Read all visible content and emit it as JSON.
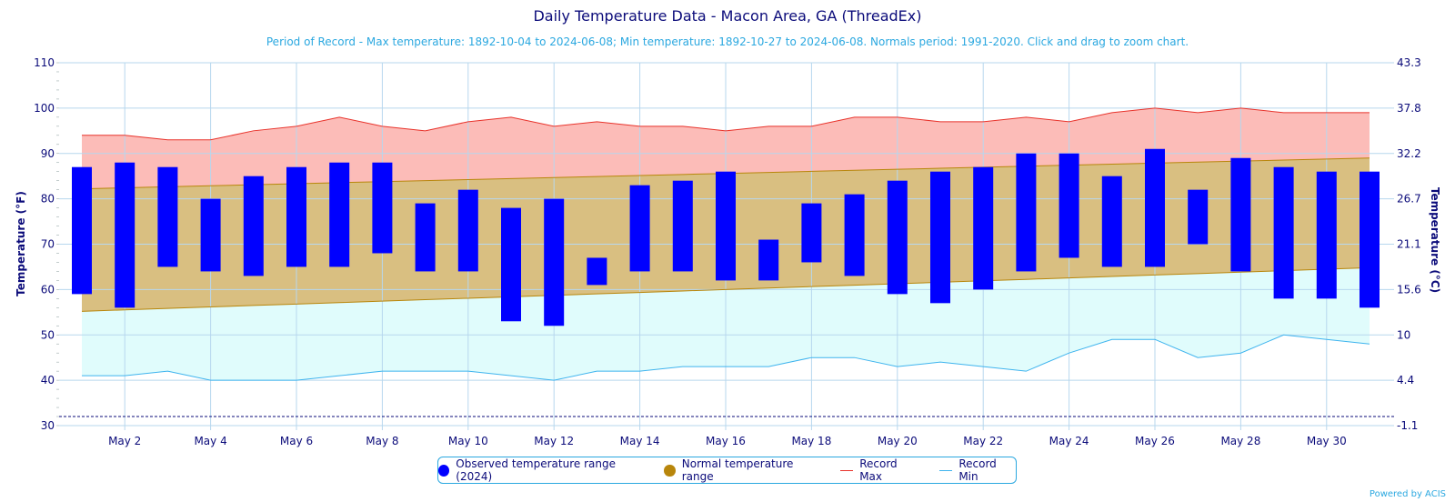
{
  "chart_data": {
    "type": "bar",
    "title": "Daily Temperature Data - Macon Area, GA (ThreadEx)",
    "subtitle": "Period of Record - Max temperature: 1892-10-04 to 2024-06-08; Min temperature: 1892-10-27 to 2024-06-08. Normals period: 1991-2020. Click and drag to zoom chart.",
    "ylabel": "Temperature (°F)",
    "y2label": "Temperature (°C)",
    "ylim": [
      30,
      110
    ],
    "yticks": [
      "30",
      "40",
      "50",
      "60",
      "70",
      "80",
      "90",
      "100",
      "110"
    ],
    "y2ticks": [
      "-1.1",
      "4.4",
      "10",
      "15.6",
      "21.1",
      "26.7",
      "32.2",
      "37.8",
      "43.3"
    ],
    "freezing_line": 32,
    "days": [
      1,
      2,
      3,
      4,
      5,
      6,
      7,
      8,
      9,
      10,
      11,
      12,
      13,
      14,
      15,
      16,
      17,
      18,
      19,
      20,
      21,
      22,
      23,
      24,
      25,
      26,
      27,
      28,
      29,
      30,
      31
    ],
    "xtick_labels": [
      "May 2",
      "May 4",
      "May 6",
      "May 8",
      "May 10",
      "May 12",
      "May 14",
      "May 16",
      "May 18",
      "May 20",
      "May 22",
      "May 24",
      "May 26",
      "May 28",
      "May 30"
    ],
    "xtick_days": [
      2,
      4,
      6,
      8,
      10,
      12,
      14,
      16,
      18,
      20,
      22,
      24,
      26,
      28,
      30
    ],
    "observed_min": [
      59,
      56,
      65,
      64,
      63,
      65,
      65,
      68,
      64,
      64,
      53,
      52,
      61,
      64,
      64,
      62,
      62,
      66,
      63,
      59,
      57,
      60,
      64,
      67,
      65,
      65,
      70,
      64,
      58,
      58,
      56
    ],
    "observed_max": [
      87,
      88,
      87,
      80,
      85,
      87,
      88,
      88,
      79,
      82,
      78,
      80,
      67,
      83,
      84,
      86,
      71,
      79,
      81,
      84,
      86,
      87,
      90,
      90,
      85,
      91,
      82,
      89,
      87,
      86,
      86
    ],
    "record_max": [
      94,
      94,
      93,
      93,
      95,
      96,
      98,
      96,
      95,
      97,
      98,
      96,
      97,
      96,
      96,
      95,
      96,
      96,
      98,
      98,
      97,
      97,
      98,
      97,
      99,
      100,
      99,
      100,
      99,
      99,
      99
    ],
    "record_min": [
      41,
      41,
      42,
      40,
      40,
      40,
      41,
      42,
      42,
      42,
      41,
      40,
      42,
      42,
      43,
      43,
      43,
      45,
      45,
      43,
      44,
      43,
      42,
      46,
      49,
      49,
      45,
      46,
      50,
      49,
      48
    ],
    "normal_max_start": 82.2,
    "normal_max_end": 89.0,
    "normal_min_start": 55.2,
    "normal_min_end": 64.8,
    "colors": {
      "observed": "#0000ff",
      "normal": "#d9bf81",
      "normal_legend": "#b8860b",
      "normal_edge": "#b8860b",
      "record_max_fill": "#fcbcb8",
      "record_max_line": "#e8332b",
      "record_min_fill": "#e0fcfc",
      "record_min_line": "#3fb4ee",
      "grid": "#b7d7ee",
      "axis_text": "#0b0b7a",
      "freezing": "#0b0b7a"
    }
  },
  "legend": {
    "observed": "Observed temperature range (2024)",
    "normal": "Normal temperature range",
    "record_max": "Record Max",
    "record_min": "Record Min"
  },
  "credit": "Powered by ACIS"
}
